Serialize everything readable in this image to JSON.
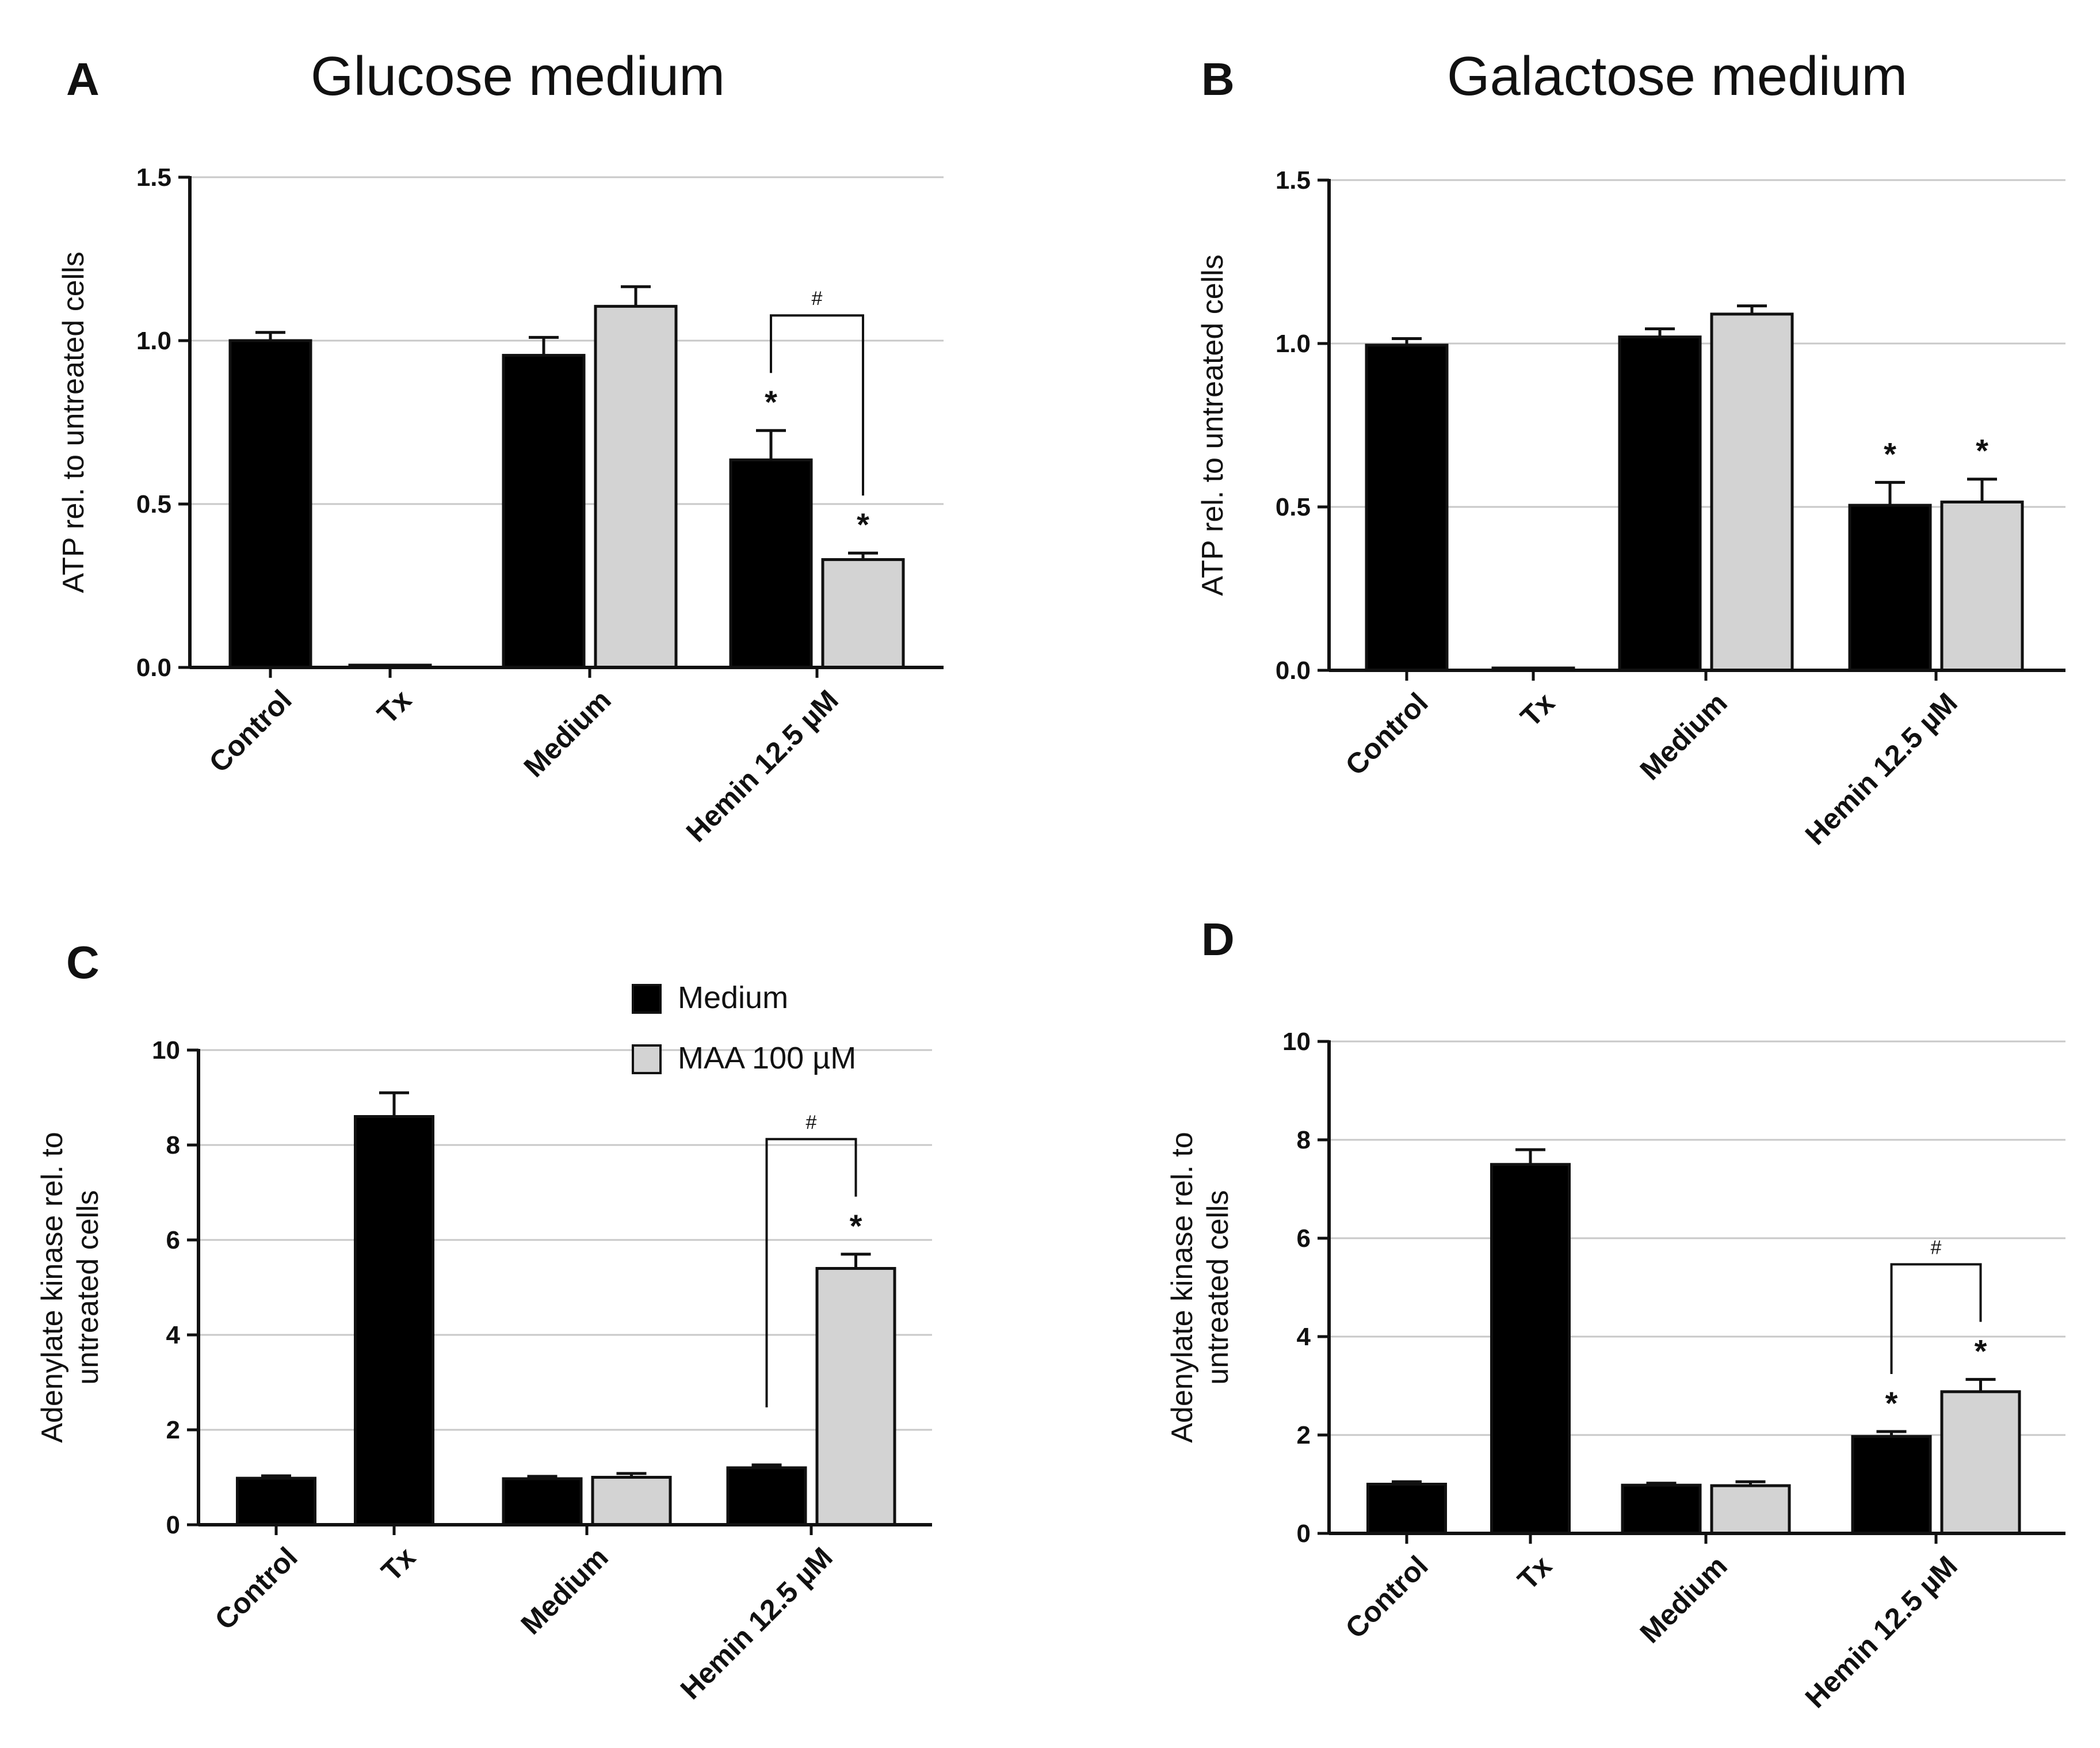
{
  "chart_data": [
    {
      "panel": "A",
      "type": "bar",
      "title": "Glucose medium",
      "xlabel": "",
      "ylabel": "ATP rel. to untreated cells",
      "ylim": [
        0,
        1.5
      ],
      "yticks": [
        0.0,
        0.5,
        1.0,
        1.5
      ],
      "ytick_labels": [
        "0.0",
        "0.5",
        "1.0",
        "1.5"
      ],
      "grid": true,
      "categories": [
        "Control",
        "Tx",
        "Medium",
        "Hemin 12.5 µM"
      ],
      "series": [
        {
          "name": "Medium",
          "color": "#000000",
          "values": [
            1.0,
            0.005,
            0.955,
            0.635
          ],
          "errors": [
            0.025,
            0.0,
            0.055,
            0.09
          ]
        },
        {
          "name": "MAA 100 µM",
          "color": "#d3d3d3",
          "values": [
            null,
            null,
            1.105,
            0.33
          ],
          "errors": [
            null,
            null,
            0.06,
            0.02
          ]
        }
      ],
      "significance": [
        {
          "category": 3,
          "series": 0,
          "label": "*"
        },
        {
          "category": 3,
          "series": 1,
          "label": "*"
        }
      ],
      "brackets": [
        {
          "category": 3,
          "label": "#"
        }
      ]
    },
    {
      "panel": "B",
      "type": "bar",
      "title": "Galactose medium",
      "xlabel": "",
      "ylabel": "ATP rel. to untreated cells",
      "ylim": [
        0,
        1.5
      ],
      "yticks": [
        0.0,
        0.5,
        1.0,
        1.5
      ],
      "ytick_labels": [
        "0.0",
        "0.5",
        "1.0",
        "1.5"
      ],
      "grid": true,
      "categories": [
        "Control",
        "Tx",
        "Medium",
        "Hemin 12.5 µM"
      ],
      "series": [
        {
          "name": "Medium",
          "color": "#000000",
          "values": [
            0.995,
            0.005,
            1.02,
            0.505
          ],
          "errors": [
            0.02,
            0.0,
            0.025,
            0.07
          ]
        },
        {
          "name": "MAA 100 µM",
          "color": "#d3d3d3",
          "values": [
            null,
            null,
            1.09,
            0.515
          ],
          "errors": [
            null,
            null,
            0.025,
            0.07
          ]
        }
      ],
      "significance": [
        {
          "category": 3,
          "series": 0,
          "label": "*"
        },
        {
          "category": 3,
          "series": 1,
          "label": "*"
        }
      ],
      "brackets": []
    },
    {
      "panel": "C",
      "type": "bar",
      "title": "",
      "xlabel": "",
      "ylabel": "Adenylate kinase rel. to untreated cells",
      "ylabel_lines": [
        "Adenylate kinase rel. to",
        "untreated cells"
      ],
      "ylim": [
        0,
        10
      ],
      "yticks": [
        0,
        2,
        4,
        6,
        8,
        10
      ],
      "ytick_labels": [
        "0",
        "2",
        "4",
        "6",
        "8",
        "10"
      ],
      "grid": true,
      "categories": [
        "Control",
        "Tx",
        "Medium",
        "Hemin 12.5 µM"
      ],
      "legend": {
        "placement": "top-right",
        "entries": [
          {
            "label": "Medium",
            "color": "#000000"
          },
          {
            "label": "MAA 100 µM",
            "color": "#d3d3d3"
          }
        ]
      },
      "series": [
        {
          "name": "Medium",
          "color": "#000000",
          "values": [
            0.98,
            8.6,
            0.97,
            1.2
          ],
          "errors": [
            0.05,
            0.5,
            0.05,
            0.06
          ]
        },
        {
          "name": "MAA 100 µM",
          "color": "#d3d3d3",
          "values": [
            null,
            null,
            1.0,
            5.4
          ],
          "errors": [
            null,
            null,
            0.08,
            0.3
          ]
        }
      ],
      "significance": [
        {
          "category": 3,
          "series": 1,
          "label": "*"
        }
      ],
      "brackets": [
        {
          "category": 3,
          "label": "#"
        }
      ]
    },
    {
      "panel": "D",
      "type": "bar",
      "title": "",
      "xlabel": "",
      "ylabel": "Adenylate kinase rel. to untreated cells",
      "ylabel_lines": [
        "Adenylate kinase rel. to",
        "untreated cells"
      ],
      "ylim": [
        0,
        10
      ],
      "yticks": [
        0,
        2,
        4,
        6,
        8,
        10
      ],
      "ytick_labels": [
        "0",
        "2",
        "4",
        "6",
        "8",
        "10"
      ],
      "grid": true,
      "categories": [
        "Control",
        "Tx",
        "Medium",
        "Hemin 12.5 µM"
      ],
      "series": [
        {
          "name": "Medium",
          "color": "#000000",
          "values": [
            1.0,
            7.5,
            0.98,
            1.97
          ],
          "errors": [
            0.05,
            0.3,
            0.04,
            0.1
          ]
        },
        {
          "name": "MAA 100 µM",
          "color": "#d3d3d3",
          "values": [
            null,
            null,
            0.97,
            2.88
          ],
          "errors": [
            null,
            null,
            0.08,
            0.25
          ]
        }
      ],
      "significance": [
        {
          "category": 3,
          "series": 0,
          "label": "*"
        },
        {
          "category": 3,
          "series": 1,
          "label": "*"
        }
      ],
      "brackets": [
        {
          "category": 3,
          "label": "#"
        }
      ]
    }
  ]
}
